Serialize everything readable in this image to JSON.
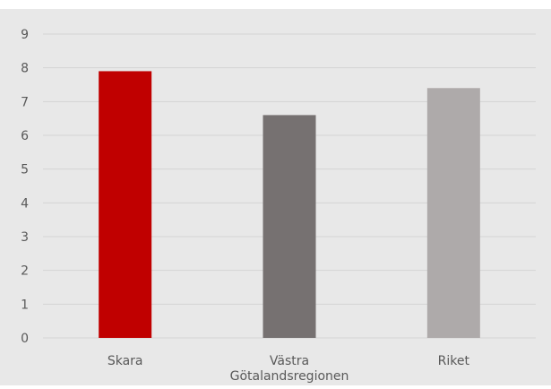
{
  "chart_data": {
    "type": "bar",
    "title": "",
    "xlabel": "",
    "ylabel": "",
    "categories": [
      "Skara",
      "Västra Götalandsregionen",
      "Riket"
    ],
    "category_label_lines": [
      [
        "Skara"
      ],
      [
        "Västra",
        "Götalandsregionen"
      ],
      [
        "Riket"
      ]
    ],
    "values": [
      7.9,
      6.6,
      7.4
    ],
    "ylim": [
      0,
      9
    ],
    "y_ticks": [
      "0",
      "1",
      "2",
      "3",
      "4",
      "5",
      "6",
      "7",
      "8",
      "9"
    ],
    "grid": true,
    "legend": "none",
    "colors": {
      "background": "#e8e8e8",
      "gridline": "#d4d4d4",
      "bars": [
        "#c00000",
        "#767171",
        "#aeaaaa"
      ],
      "text": "#595959"
    }
  }
}
